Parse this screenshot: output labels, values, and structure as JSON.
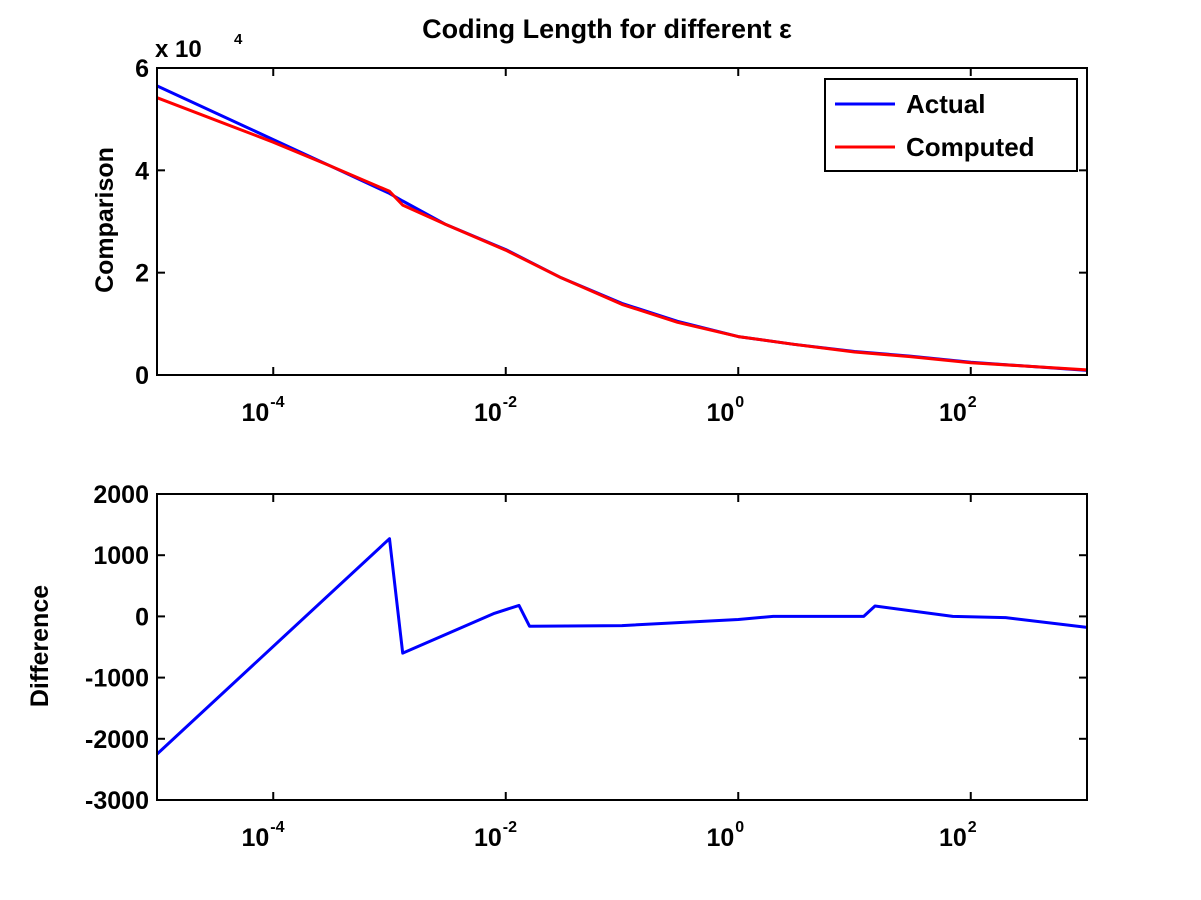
{
  "chart_data": [
    {
      "type": "line",
      "title": "Coding Length for different ε",
      "ylabel": "Comparison",
      "xlabel": "",
      "x_scale": "log",
      "xlim": [
        1e-05,
        1000
      ],
      "ylim": [
        0,
        60000
      ],
      "y_multiplier_label": "x 10",
      "y_multiplier_exponent": "4",
      "x_ticks": [
        {
          "value": 0.0001,
          "base": "10",
          "exp": "-4"
        },
        {
          "value": 0.01,
          "base": "10",
          "exp": "-2"
        },
        {
          "value": 1,
          "base": "10",
          "exp": "0"
        },
        {
          "value": 100,
          "base": "10",
          "exp": "2"
        }
      ],
      "y_ticks": [
        {
          "value": 0,
          "label": "0"
        },
        {
          "value": 20000,
          "label": "2"
        },
        {
          "value": 40000,
          "label": "4"
        },
        {
          "value": 60000,
          "label": "6"
        }
      ],
      "legend_position": "top-right",
      "series": [
        {
          "name": "Actual",
          "color": "#0000ff",
          "x": [
            1e-05,
            0.0001,
            0.0003,
            0.001,
            0.0013,
            0.003,
            0.01,
            0.03,
            0.1,
            0.3,
            1,
            3,
            10,
            30,
            100,
            1000
          ],
          "y": [
            56500,
            46000,
            41000,
            35500,
            34000,
            29500,
            24500,
            19000,
            14000,
            10500,
            7500,
            6000,
            4600,
            3700,
            2500,
            900
          ]
        },
        {
          "name": "Computed",
          "color": "#ff0000",
          "x": [
            1e-05,
            0.0001,
            0.0003,
            0.001,
            0.0013,
            0.003,
            0.01,
            0.03,
            0.1,
            0.3,
            1,
            3,
            10,
            30,
            100,
            1000
          ],
          "y": [
            54200,
            45500,
            41000,
            35900,
            33200,
            29500,
            24400,
            19000,
            13800,
            10300,
            7500,
            6000,
            4500,
            3600,
            2400,
            1000
          ]
        }
      ]
    },
    {
      "type": "line",
      "title": "",
      "ylabel": "Difference",
      "xlabel": "",
      "x_scale": "log",
      "xlim": [
        1e-05,
        1000
      ],
      "ylim": [
        -3000,
        2000
      ],
      "x_ticks": [
        {
          "value": 0.0001,
          "base": "10",
          "exp": "-4"
        },
        {
          "value": 0.01,
          "base": "10",
          "exp": "-2"
        },
        {
          "value": 1,
          "base": "10",
          "exp": "0"
        },
        {
          "value": 100,
          "base": "10",
          "exp": "2"
        }
      ],
      "y_ticks": [
        {
          "value": 2000,
          "label": "2000"
        },
        {
          "value": 1000,
          "label": "1000"
        },
        {
          "value": 0,
          "label": "0"
        },
        {
          "value": -1000,
          "label": "-1000"
        },
        {
          "value": -2000,
          "label": "-2000"
        },
        {
          "value": -3000,
          "label": "-3000"
        }
      ],
      "series": [
        {
          "color": "#0000ff",
          "x": [
            1e-05,
            0.001,
            0.0013,
            0.008,
            0.013,
            0.016,
            0.1,
            1,
            2,
            10,
            12,
            15,
            70,
            200,
            1000
          ],
          "y": [
            -2250,
            1270,
            -600,
            50,
            180,
            -160,
            -150,
            -50,
            0,
            0,
            0,
            170,
            0,
            -20,
            -180
          ]
        }
      ]
    }
  ]
}
